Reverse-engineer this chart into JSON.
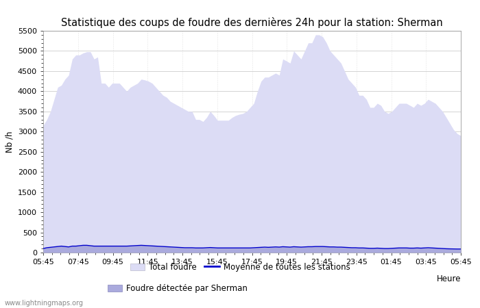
{
  "title": "Statistique des coups de foudre des dernières 24h pour la station: Sherman",
  "xlabel": "Heure",
  "ylabel": "Nb /h",
  "ylim": [
    0,
    5500
  ],
  "yticks": [
    0,
    500,
    1000,
    1500,
    2000,
    2500,
    3000,
    3500,
    4000,
    4500,
    5000,
    5500
  ],
  "xtick_labels": [
    "05:45",
    "07:45",
    "09:45",
    "11:45",
    "13:45",
    "15:45",
    "17:45",
    "19:45",
    "21:45",
    "23:45",
    "01:45",
    "03:45",
    "05:45"
  ],
  "total_foudre_color": "#dcdcf5",
  "sherman_color": "#aaaadd",
  "moyenne_color": "#0000cc",
  "background_color": "#ffffff",
  "grid_color": "#cccccc",
  "watermark": "www.lightningmaps.org",
  "title_fontsize": 10.5,
  "label_fontsize": 8.5,
  "tick_fontsize": 8,
  "total_foudre": [
    3150,
    3300,
    3500,
    3800,
    4100,
    4150,
    4300,
    4400,
    4800,
    4900,
    4900,
    4950,
    4980,
    4980,
    4800,
    4850,
    4200,
    4200,
    4100,
    4200,
    4200,
    4200,
    4100,
    4000,
    4100,
    4150,
    4200,
    4300,
    4280,
    4250,
    4200,
    4100,
    4000,
    3900,
    3850,
    3750,
    3700,
    3650,
    3600,
    3550,
    3500,
    3500,
    3300,
    3300,
    3250,
    3350,
    3500,
    3400,
    3280,
    3280,
    3280,
    3280,
    3350,
    3400,
    3430,
    3450,
    3500,
    3600,
    3700,
    4000,
    4250,
    4350,
    4350,
    4400,
    4450,
    4400,
    4800,
    4750,
    4700,
    5000,
    4900,
    4800,
    5000,
    5200,
    5200,
    5400,
    5400,
    5350,
    5200,
    5000,
    4900,
    4800,
    4700,
    4500,
    4300,
    4200,
    4100,
    3900,
    3900,
    3800,
    3600,
    3600,
    3700,
    3650,
    3500,
    3450,
    3500,
    3600,
    3700,
    3700,
    3700,
    3650,
    3600,
    3700,
    3650,
    3700,
    3800,
    3750,
    3700,
    3600,
    3500,
    3350,
    3200,
    3050,
    2950,
    2900
  ],
  "sherman_foudre": [
    100,
    120,
    130,
    140,
    150,
    160,
    150,
    140,
    160,
    160,
    170,
    180,
    180,
    170,
    160,
    160,
    160,
    160,
    160,
    160,
    160,
    160,
    160,
    160,
    165,
    170,
    175,
    180,
    175,
    170,
    165,
    160,
    155,
    150,
    145,
    140,
    135,
    130,
    125,
    120,
    120,
    120,
    115,
    115,
    115,
    120,
    125,
    120,
    115,
    115,
    115,
    115,
    115,
    115,
    115,
    115,
    115,
    115,
    120,
    125,
    130,
    135,
    130,
    135,
    140,
    135,
    145,
    140,
    135,
    145,
    140,
    135,
    140,
    145,
    145,
    150,
    150,
    150,
    145,
    140,
    140,
    135,
    135,
    130,
    125,
    120,
    120,
    115,
    115,
    110,
    105,
    105,
    110,
    105,
    100,
    100,
    105,
    110,
    115,
    115,
    115,
    110,
    110,
    115,
    110,
    115,
    120,
    115,
    110,
    105,
    100,
    95,
    92,
    90,
    88,
    88
  ],
  "moyenne": [
    100,
    120,
    130,
    140,
    150,
    160,
    150,
    140,
    160,
    160,
    170,
    180,
    180,
    170,
    160,
    160,
    160,
    160,
    160,
    160,
    160,
    160,
    160,
    160,
    165,
    170,
    175,
    180,
    175,
    170,
    165,
    160,
    155,
    150,
    145,
    140,
    135,
    130,
    125,
    120,
    120,
    120,
    115,
    115,
    115,
    120,
    125,
    120,
    115,
    115,
    115,
    115,
    115,
    115,
    115,
    115,
    115,
    115,
    120,
    125,
    130,
    135,
    130,
    135,
    140,
    135,
    145,
    140,
    135,
    145,
    140,
    135,
    140,
    145,
    145,
    150,
    150,
    150,
    145,
    140,
    140,
    135,
    135,
    130,
    125,
    120,
    120,
    115,
    115,
    110,
    105,
    105,
    110,
    105,
    100,
    100,
    105,
    110,
    115,
    115,
    115,
    110,
    110,
    115,
    110,
    115,
    120,
    115,
    110,
    105,
    100,
    95,
    92,
    90,
    88,
    88
  ]
}
